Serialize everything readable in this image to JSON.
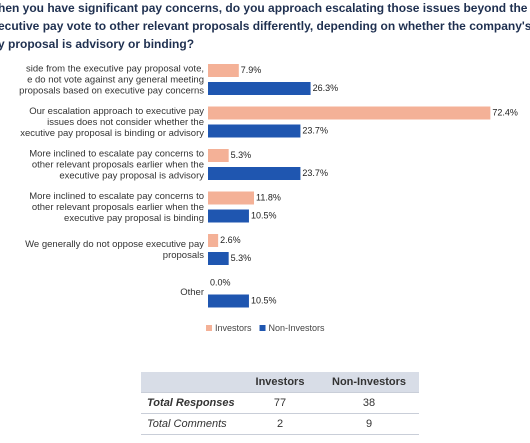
{
  "chart_data": {
    "type": "bar",
    "title": [
      "hen you have significant pay concerns, do you approach escalating those issues beyond the company's",
      "ecutive pay vote to other relevant proposals differently, depending on whether the company's executive",
      "y proposal is advisory or binding?"
    ],
    "categories": [
      [
        "side from the executive pay proposal vote,",
        "e do not vote against any general meeting",
        "proposals based on executive pay concerns"
      ],
      [
        "Our escalation approach to executive pay",
        "issues does not consider whether the",
        "xecutive pay proposal is binding or advisory"
      ],
      [
        "More inclined to escalate pay concerns to",
        "other relevant proposals earlier when the",
        "executive pay proposal is advisory"
      ],
      [
        "More inclined to escalate pay concerns to",
        "other relevant proposals earlier when the",
        "executive pay proposal is binding"
      ],
      [
        "We generally do not oppose executive pay",
        "proposals"
      ],
      [
        "Other"
      ]
    ],
    "series": [
      {
        "name": "Investors",
        "color": "#f4b197",
        "values": [
          7.9,
          72.4,
          5.3,
          11.8,
          2.6,
          0.0
        ],
        "value_labels": [
          "7.9%",
          "72.4%",
          "5.3%",
          "11.8%",
          "2.6%",
          "0.0%"
        ]
      },
      {
        "name": "Non-Investors",
        "color": "#1f56b0",
        "values": [
          26.3,
          23.7,
          23.7,
          10.5,
          5.3,
          10.5
        ],
        "value_labels": [
          "26.3%",
          "23.7%",
          "23.7%",
          "10.5%",
          "5.3%",
          "10.5%"
        ]
      }
    ]
  },
  "table": {
    "header": [
      "Investors",
      "Non-Investors"
    ],
    "rows": [
      [
        "Total Responses",
        77,
        38
      ],
      [
        "Total Comments",
        2,
        9
      ]
    ]
  }
}
